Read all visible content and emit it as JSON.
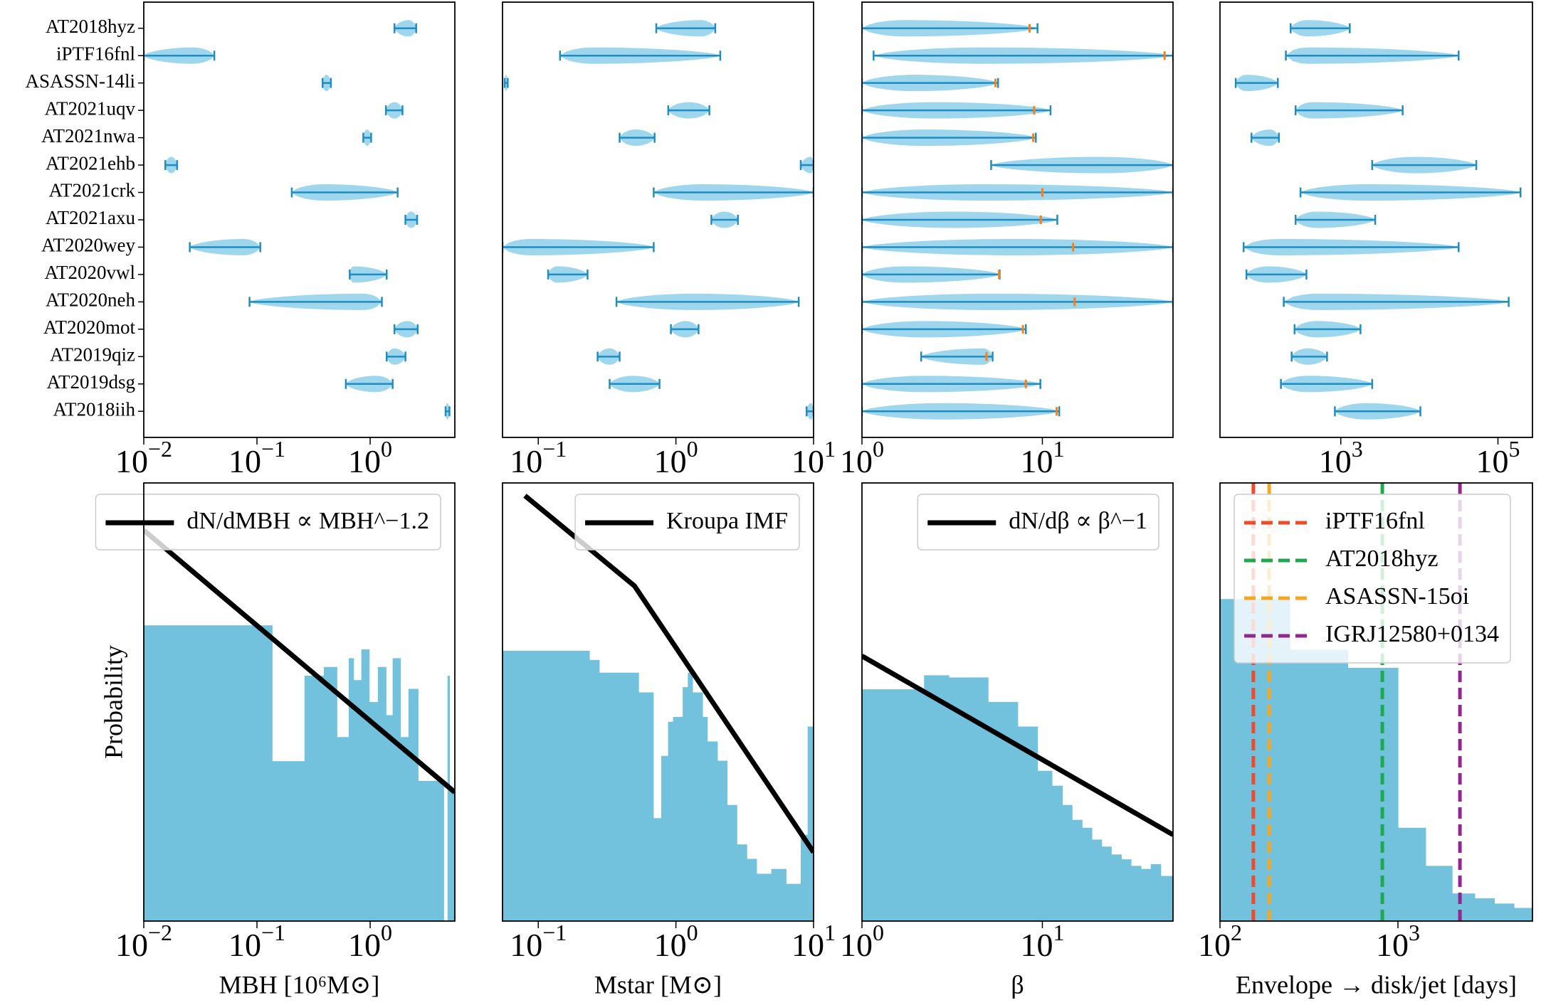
{
  "chart_data": [
    {
      "type": "violin",
      "categories": [
        "AT2018hyz",
        "iPTF16fnl",
        "ASASSN-14li",
        "AT2021uqv",
        "AT2021nwa",
        "AT2021ehb",
        "AT2021crk",
        "AT2021axu",
        "AT2020wey",
        "AT2020vwl",
        "AT2020neh",
        "AT2020mot",
        "AT2019qiz",
        "AT2019dsg",
        "AT2018iih"
      ],
      "low": [
        1.64,
        0.01,
        0.38,
        1.38,
        0.87,
        0.0155,
        0.203,
        2.05,
        0.0255,
        0.66,
        0.086,
        1.64,
        1.4,
        0.61,
        4.64
      ],
      "peak": [
        2.2,
        0.027,
        0.41,
        1.64,
        0.94,
        0.0175,
        0.39,
        2.3,
        0.076,
        0.71,
        0.87,
        2.14,
        1.64,
        1.13,
        4.8
      ],
      "high": [
        2.55,
        0.042,
        0.45,
        1.93,
        1.02,
        0.0197,
        1.75,
        2.6,
        0.107,
        1.4,
        1.27,
        2.63,
        2.05,
        1.58,
        5.02
      ],
      "xscale": "log",
      "xlim": [
        0.01,
        5.6
      ],
      "xticks": [
        {
          "value": 0.01,
          "label": "10",
          "exp": "−2"
        },
        {
          "value": 0.1,
          "label": "10",
          "exp": "−1"
        },
        {
          "value": 1,
          "label": "10",
          "exp": "0"
        }
      ],
      "violin_color": "#8ccfea",
      "bar_color": "#1f8cc2"
    },
    {
      "type": "violin",
      "low": [
        0.72,
        0.144,
        0.057,
        0.88,
        0.39,
        8.07,
        0.69,
        1.81,
        0.055,
        0.118,
        0.37,
        0.92,
        0.27,
        0.33,
        8.9
      ],
      "peak": [
        1.51,
        0.247,
        0.058,
        1.24,
        0.51,
        9.6,
        1.56,
        2.25,
        0.088,
        0.137,
        1.37,
        1.18,
        0.33,
        0.49,
        9.6
      ],
      "high": [
        1.93,
        2.1,
        0.06,
        1.75,
        0.7,
        10,
        10,
        2.82,
        0.69,
        0.228,
        7.8,
        1.46,
        0.39,
        0.76,
        10
      ],
      "xscale": "log",
      "xlim": [
        0.055,
        10
      ],
      "xticks": [
        {
          "value": 0.1,
          "label": "10",
          "exp": "−1"
        },
        {
          "value": 1,
          "label": "10",
          "exp": "0"
        },
        {
          "value": 10,
          "label": "10",
          "exp": "1"
        }
      ],
      "violin_color": "#8ccfea",
      "bar_color": "#1f8cc2"
    },
    {
      "type": "violin",
      "low": [
        1,
        1.16,
        1,
        1,
        1,
        5.2,
        1,
        1,
        1,
        1,
        1,
        1,
        2.13,
        1,
        1
      ],
      "peak": [
        1.72,
        4.7,
        1.95,
        2.5,
        2.2,
        21,
        4.7,
        3.2,
        6.9,
        1.72,
        5.3,
        2.2,
        4.7,
        2.2,
        2.8
      ],
      "high": [
        9.4,
        53,
        5.68,
        11.1,
        9.2,
        53,
        53,
        12.1,
        53,
        5.8,
        53,
        8.1,
        5.3,
        9.75,
        12.4
      ],
      "median": [
        8.5,
        47.6,
        5.5,
        9.0,
        8.9,
        null,
        10,
        9.8,
        14.8,
        5.75,
        15.1,
        7.8,
        4.9,
        8.1,
        12
      ],
      "xscale": "log",
      "xlim": [
        1,
        53
      ],
      "xticks": [
        {
          "value": 1,
          "label": "10",
          "exp": "0"
        },
        {
          "value": 10,
          "label": "10",
          "exp": "1"
        }
      ],
      "violin_color": "#8ccfea",
      "bar_color": "#1f8cc2",
      "median_color": "#ff7f0e"
    },
    {
      "type": "violin",
      "low": [
        230,
        200,
        46,
        266,
        73,
        2510,
        307,
        266,
        58,
        63,
        188,
        258,
        237,
        173,
        841
      ],
      "peak": [
        376,
        376,
        63,
        434,
        126,
        8900,
        2110,
        500,
        158,
        119,
        500,
        500,
        376,
        376,
        2110
      ],
      "high": [
        1300,
        31600,
        158,
        6130,
        163,
        53000,
        194000,
        2740,
        31600,
        365,
        137000,
        1780,
        668,
        2510,
        10300
      ],
      "xscale": "log",
      "xlim": [
        29,
        275000
      ],
      "xticks": [
        {
          "value": 1000,
          "label": "10",
          "exp": "3"
        },
        {
          "value": 100000,
          "label": "10",
          "exp": "5"
        }
      ],
      "violin_color": "#8ccfea",
      "bar_color": "#1f8cc2"
    },
    {
      "type": "histogram",
      "bins": [
        0.01,
        0.136,
        0.263,
        0.39,
        0.508,
        0.646,
        0.713,
        0.836,
        0.98,
        1.17,
        1.38,
        1.58,
        1.85,
        2.18,
        2.65,
        4.46,
        4.83,
        5.02,
        5.6
      ],
      "counts": [
        0.675,
        0.365,
        0.56,
        0.58,
        0.42,
        0.6,
        0.55,
        0.62,
        0.5,
        0.58,
        0.47,
        0.6,
        0.42,
        0.53,
        0.32,
        0,
        0.56,
        0.3
      ],
      "color": "#72c2de",
      "xscale": "log",
      "xlim": [
        0.01,
        5.6
      ],
      "ylim": [
        0,
        1
      ],
      "xticks": [
        {
          "value": 0.01,
          "label": "10",
          "exp": "−2"
        },
        {
          "value": 0.1,
          "label": "10",
          "exp": "−1"
        },
        {
          "value": 1,
          "label": "10",
          "exp": "0"
        }
      ],
      "xlabel": "MBH [10⁶M⊙]",
      "ylabel": "Probability",
      "line": {
        "name": "dN/dMBH ∝ MBH^−1.2",
        "color": "#000000",
        "x": [
          0.01,
          5.6
        ],
        "y": [
          0.892,
          0.294
        ]
      },
      "legend": "upper right"
    },
    {
      "type": "histogram",
      "bins": [
        0.055,
        0.235,
        0.277,
        0.535,
        0.685,
        0.782,
        0.877,
        0.953,
        1.12,
        1.22,
        1.32,
        1.56,
        1.69,
        2.0,
        2.35,
        2.77,
        3.27,
        3.85,
        4.93,
        6.31,
        8.07,
        9.06,
        10
      ],
      "counts": [
        0.617,
        0.596,
        0.567,
        0.522,
        0.235,
        0.377,
        0.455,
        0.466,
        0.534,
        0.567,
        0.522,
        0.466,
        0.41,
        0.366,
        0.265,
        0.175,
        0.142,
        0.108,
        0.119,
        0.085,
        0.197,
        0.444
      ],
      "color": "#72c2de",
      "xscale": "log",
      "xlim": [
        0.055,
        10
      ],
      "ylim": [
        0,
        1
      ],
      "xticks": [
        {
          "value": 0.1,
          "label": "10",
          "exp": "−1"
        },
        {
          "value": 1,
          "label": "10",
          "exp": "0"
        },
        {
          "value": 10,
          "label": "10",
          "exp": "1"
        }
      ],
      "xlabel": "Mstar [M⊙]",
      "line": {
        "name": "Kroupa IMF",
        "color": "#000000",
        "x": [
          0.08,
          0.5,
          10
        ],
        "y": [
          0.971,
          0.765,
          0.157
        ]
      },
      "legend": "upper right"
    },
    {
      "type": "histogram",
      "bins": [
        1,
        2.21,
        3.03,
        5.0,
        7.3,
        9.4,
        11.3,
        12.9,
        14.6,
        16.6,
        18.8,
        21.3,
        24.1,
        27.4,
        31.0,
        35.2,
        39.9,
        45.3,
        53
      ],
      "counts": [
        0.529,
        0.561,
        0.556,
        0.5,
        0.444,
        0.343,
        0.309,
        0.265,
        0.231,
        0.213,
        0.186,
        0.17,
        0.152,
        0.141,
        0.126,
        0.119,
        0.13,
        0.103
      ],
      "color": "#72c2de",
      "xscale": "log",
      "xlim": [
        1,
        53
      ],
      "ylim": [
        0,
        1
      ],
      "xticks": [
        {
          "value": 1,
          "label": "10",
          "exp": "0"
        },
        {
          "value": 10,
          "label": "10",
          "exp": "1"
        }
      ],
      "xlabel": "β",
      "line": {
        "name": "dN/dβ ∝ β^−1",
        "color": "#000000",
        "x": [
          1,
          53
        ],
        "y": [
          0.605,
          0.197
        ]
      },
      "legend": "upper right"
    },
    {
      "type": "histogram",
      "bins": [
        100,
        247,
        522,
        1000,
        1430,
        2015,
        2700,
        3480,
        4490,
        5700
      ],
      "counts": [
        0.735,
        0.619,
        0.578,
        0.213,
        0.126,
        0.063,
        0.052,
        0.04,
        0.03
      ],
      "color": "#72c2de",
      "xscale": "log",
      "xlim": [
        100,
        5700
      ],
      "ylim": [
        0,
        1
      ],
      "xticks": [
        {
          "value": 100,
          "label": "10",
          "exp": "2"
        },
        {
          "value": 1000,
          "label": "10",
          "exp": "3"
        }
      ],
      "xlabel": "Envelope → disk/jet [days]",
      "vlines": [
        {
          "name": "iPTF16fnl",
          "color": "#ee4b2b",
          "value": 154
        },
        {
          "name": "AT2018hyz",
          "color": "#1fa84f",
          "value": 817
        },
        {
          "name": "ASASSN-15oi",
          "color": "#f5a623",
          "value": 189
        },
        {
          "name": "IGRJ12580+0134",
          "color": "#93278f",
          "value": 2230
        }
      ],
      "legend": "upper left"
    }
  ]
}
